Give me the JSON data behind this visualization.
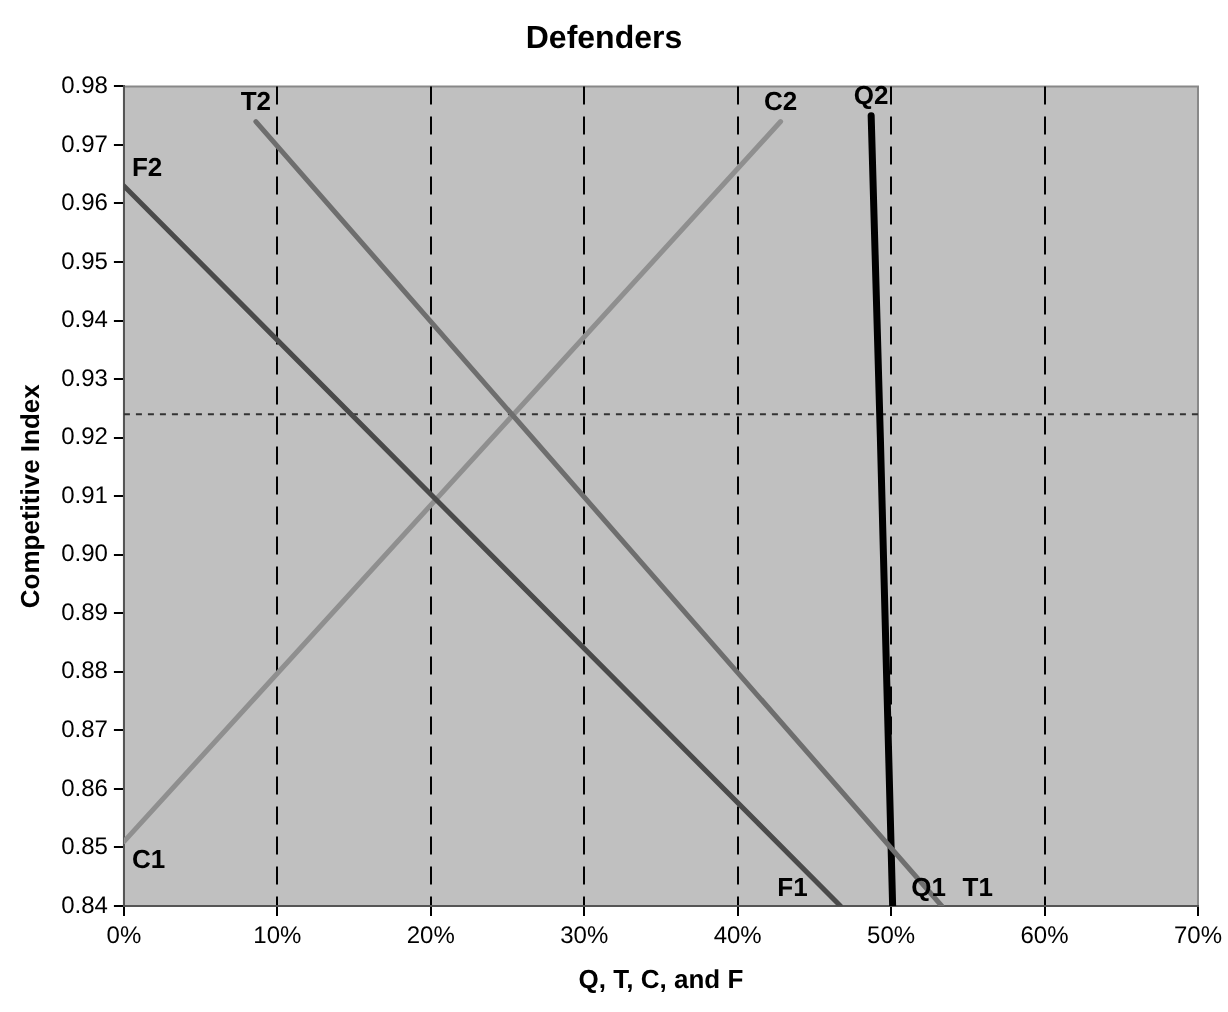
{
  "chart_data": {
    "type": "line",
    "title": "Defenders",
    "xlabel": "Q, T, C, and F",
    "ylabel": "Competitive Index",
    "xlim": [
      0,
      70
    ],
    "xticks": [
      {
        "value": 0,
        "label": "0%"
      },
      {
        "value": 10,
        "label": "10%"
      },
      {
        "value": 20,
        "label": "20%"
      },
      {
        "value": 30,
        "label": "30%"
      },
      {
        "value": 40,
        "label": "40%"
      },
      {
        "value": 50,
        "label": "50%"
      },
      {
        "value": 60,
        "label": "60%"
      },
      {
        "value": 70,
        "label": "70%"
      }
    ],
    "ylim": [
      0.84,
      0.98
    ],
    "yticks": [
      {
        "value": 0.84,
        "label": "0.84"
      },
      {
        "value": 0.85,
        "label": "0.85"
      },
      {
        "value": 0.86,
        "label": "0.86"
      },
      {
        "value": 0.87,
        "label": "0.87"
      },
      {
        "value": 0.88,
        "label": "0.88"
      },
      {
        "value": 0.89,
        "label": "0.89"
      },
      {
        "value": 0.9,
        "label": "0.90"
      },
      {
        "value": 0.91,
        "label": "0.91"
      },
      {
        "value": 0.92,
        "label": "0.92"
      },
      {
        "value": 0.93,
        "label": "0.93"
      },
      {
        "value": 0.94,
        "label": "0.94"
      },
      {
        "value": 0.95,
        "label": "0.95"
      },
      {
        "value": 0.96,
        "label": "0.96"
      },
      {
        "value": 0.97,
        "label": "0.97"
      },
      {
        "value": 0.98,
        "label": "0.98"
      }
    ],
    "grid": "x",
    "legend": false,
    "marker": "none",
    "series": [
      {
        "color": "#4a4a4a",
        "x": [
          0,
          46.7
        ],
        "values": [
          0.963,
          0.84
        ]
      },
      {
        "color": "#6e6e6e",
        "x": [
          8.6,
          53.3
        ],
        "values": [
          0.974,
          0.84
        ]
      },
      {
        "color": "#8f8f8f",
        "x": [
          0,
          42.8
        ],
        "values": [
          0.851,
          0.974
        ]
      },
      {
        "color": "#000000",
        "x": [
          48.7,
          49.3,
          50.1
        ],
        "values": [
          0.975,
          0.92,
          0.84
        ]
      }
    ],
    "ref_lines": [
      {
        "axis": "y",
        "value": 0.924,
        "color": "#333333",
        "line_style": "dotted"
      }
    ],
    "annotations": [
      {
        "text": "F2",
        "x": 0,
        "y": 0.963
      },
      {
        "text": "F1",
        "x": 46.7,
        "y": 0.84
      },
      {
        "text": "T2",
        "x": 8.6,
        "y": 0.974
      },
      {
        "text": "T1",
        "x": 53.3,
        "y": 0.84
      },
      {
        "text": "C1",
        "x": 0,
        "y": 0.851
      },
      {
        "text": "C2",
        "x": 42.8,
        "y": 0.974
      },
      {
        "text": "Q2",
        "x": 48.7,
        "y": 0.975
      },
      {
        "text": "Q1",
        "x": 50.1,
        "y": 0.84
      }
    ]
  }
}
